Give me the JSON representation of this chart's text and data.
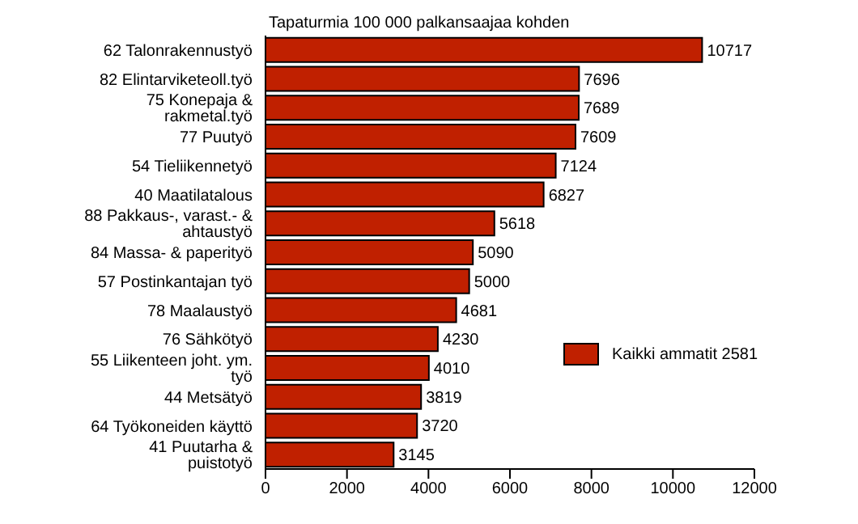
{
  "chart_data": {
    "type": "bar",
    "orientation": "horizontal",
    "title": "Tapaturmia 100 000 palkansaajaa kohden",
    "categories": [
      "62 Talonrakennustyö",
      "82 Elintarviketeoll.työ",
      "75 Konepaja & rakmetal.työ",
      "77  Puutyö",
      "54 Tieliikennetyö",
      "40 Maatilatalous",
      "88 Pakkaus-, varast.- & ahtaustyö",
      "84 Massa- & paperityö",
      "57 Postinkantajan työ",
      "78 Maalaustyö",
      "76  Sähkötyö",
      "55 Liikenteen joht. ym. työ",
      "44 Metsätyö",
      "64 Työkoneiden käyttö",
      "41 Puutarha & puistotyö"
    ],
    "series": [
      {
        "name": "Kaikki ammatit 2581",
        "color": "#c02000",
        "values": [
          10717,
          7696,
          7689,
          7609,
          7124,
          6827,
          5618,
          5090,
          5000,
          4681,
          4230,
          4010,
          3819,
          3720,
          3145
        ]
      }
    ],
    "xlim": [
      0,
      12000
    ],
    "xticks": [
      0,
      2000,
      4000,
      6000,
      8000,
      10000,
      12000
    ],
    "data_labels": true,
    "legend": "right",
    "grid": false
  }
}
